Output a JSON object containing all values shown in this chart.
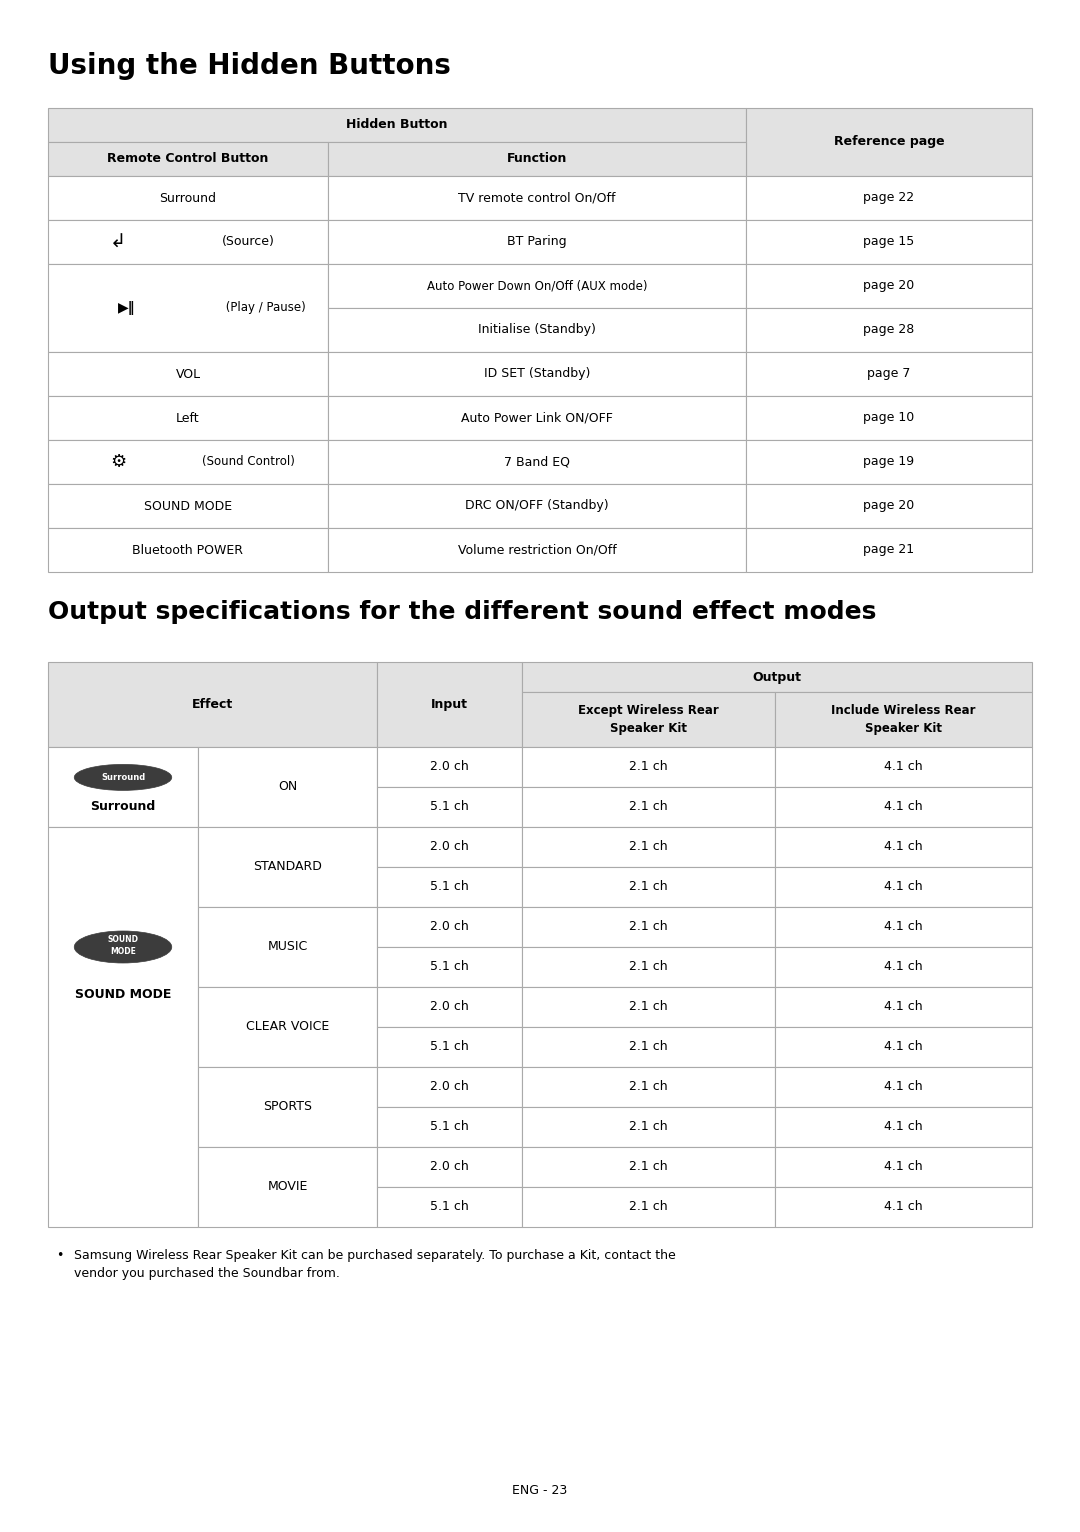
{
  "title1": "Using the Hidden Buttons",
  "title2": "Output specifications for the different sound effect modes",
  "page_number": "ENG - 23",
  "footnote_line1": "Samsung Wireless Rear Speaker Kit can be purchased separately. To purchase a Kit, contact the",
  "footnote_line2": "vendor you purchased the Soundbar from.",
  "bg_color": "#ffffff",
  "t1_header_bg": "#e2e2e2",
  "t2_header_bg": "#e2e2e2",
  "border_color": "#aaaaaa",
  "table1_rows": [
    [
      "Surround",
      "TV remote control On/Off",
      "page 22"
    ],
    [
      "(Source)",
      "BT Paring",
      "page 15"
    ],
    [
      "(Play / Pause)",
      "Auto Power Down On/Off (AUX mode)",
      "page 20"
    ],
    [
      "",
      "Initialise (Standby)",
      "page 28"
    ],
    [
      "VOL",
      "ID SET (Standby)",
      "page 7"
    ],
    [
      "Left",
      "Auto Power Link ON/OFF",
      "page 10"
    ],
    [
      "(Sound Control)",
      "7 Band EQ",
      "page 19"
    ],
    [
      "SOUND MODE",
      "DRC ON/OFF (Standby)",
      "page 20"
    ],
    [
      "Bluetooth POWER",
      "Volume restriction On/Off",
      "page 21"
    ]
  ],
  "table2_sound_modes": [
    "STANDARD",
    "MUSIC",
    "CLEAR VOICE",
    "SPORTS",
    "MOVIE"
  ]
}
